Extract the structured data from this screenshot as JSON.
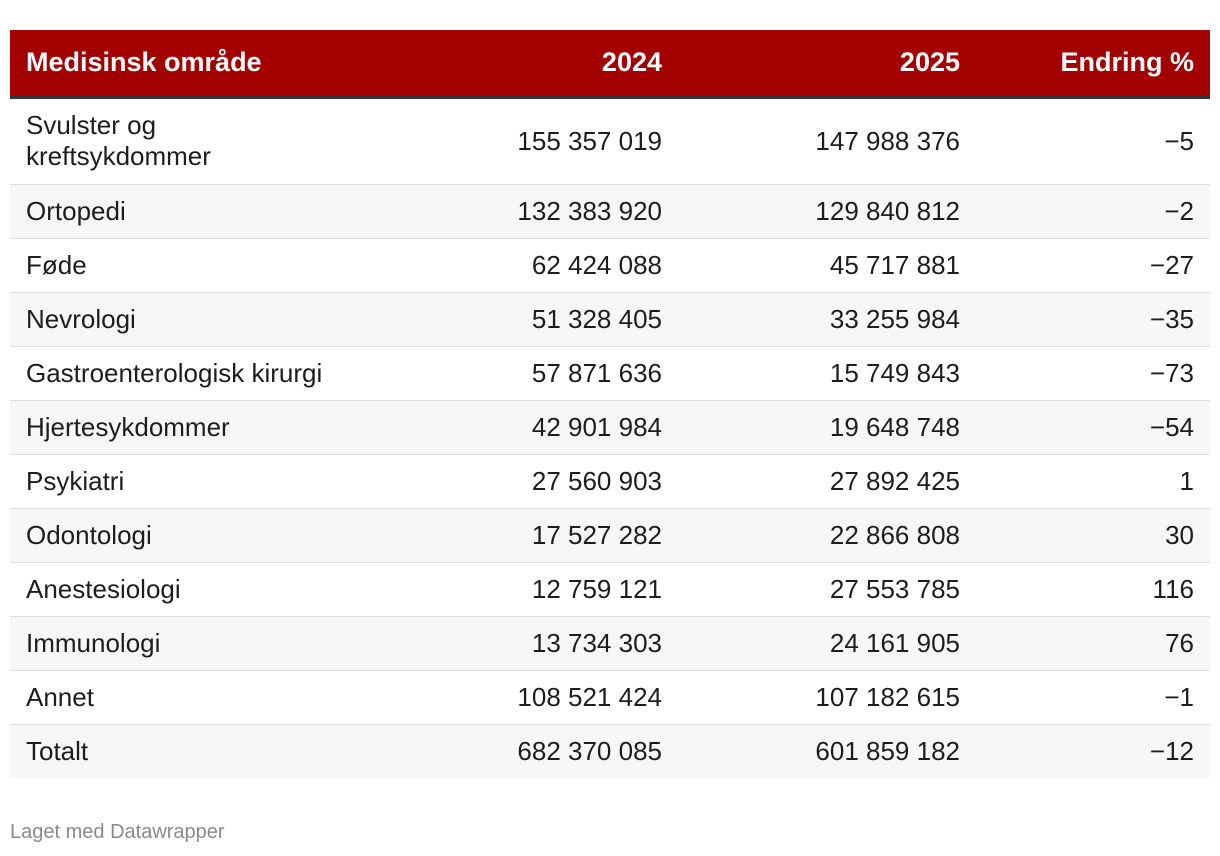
{
  "chart_data": {
    "type": "table",
    "columns": [
      "Medisinsk område",
      "2024",
      "2025",
      "Endring %"
    ],
    "rows": [
      [
        "Svulster og kreftsykdommer",
        "155 357 019",
        "147 988 376",
        "−5"
      ],
      [
        "Ortopedi",
        "132 383 920",
        "129 840 812",
        "−2"
      ],
      [
        "Føde",
        "62 424 088",
        "45 717 881",
        "−27"
      ],
      [
        "Nevrologi",
        "51 328 405",
        "33 255 984",
        "−35"
      ],
      [
        "Gastroenterologisk kirurgi",
        "57 871 636",
        "15 749 843",
        "−73"
      ],
      [
        "Hjertesykdommer",
        "42 901 984",
        "19 648 748",
        "−54"
      ],
      [
        "Psykiatri",
        "27 560 903",
        "27 892 425",
        "1"
      ],
      [
        "Odontologi",
        "17 527 282",
        "22 866 808",
        "30"
      ],
      [
        "Anestesiologi",
        "12 759 121",
        "27 553 785",
        "116"
      ],
      [
        "Immunologi",
        "13 734 303",
        "24 161 905",
        "76"
      ],
      [
        "Annet",
        "108 521 424",
        "107 182 615",
        "−1"
      ],
      [
        "Totalt",
        "682 370 085",
        "601 859 182",
        "−12"
      ]
    ],
    "header_color": "#a30000",
    "stripe_color": "#f7f7f7"
  },
  "footer": {
    "credit": "Laget med Datawrapper"
  }
}
